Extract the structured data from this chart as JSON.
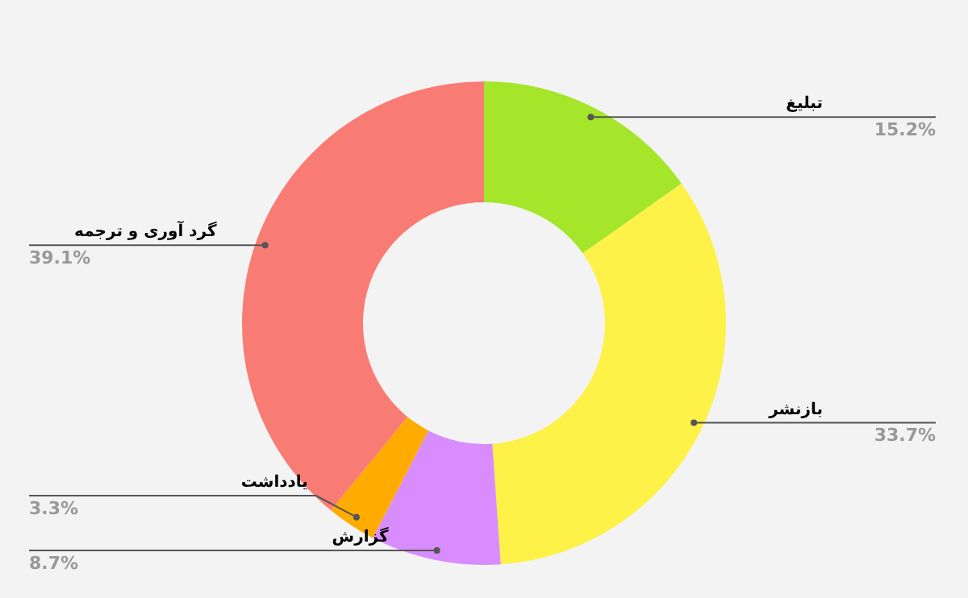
{
  "chart_data": {
    "type": "donut",
    "categories": [
      "تبلیغ",
      "بازنشر",
      "گزارش",
      "یادداشت",
      "گرد آوری و ترجمه"
    ],
    "values": [
      15.2,
      33.7,
      8.7,
      3.3,
      39.1
    ],
    "value_labels": [
      "15.2%",
      "33.7%",
      "8.7%",
      "3.3%",
      "39.1%"
    ],
    "colors": [
      "#a5e52a",
      "#fef147",
      "#d98cfd",
      "#ffab00",
      "#f87c74"
    ],
    "legend": false
  }
}
